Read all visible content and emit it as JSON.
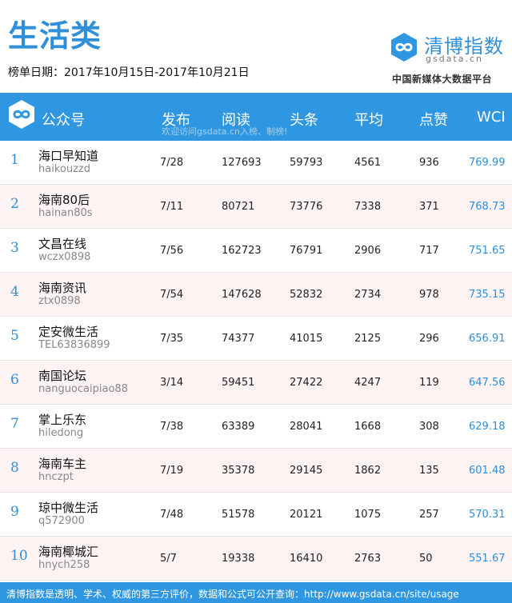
{
  "page": {
    "title": "生活类",
    "date_label": "榜单日期：2017年10月15日-2017年10月21日"
  },
  "brand": {
    "logo_icon": "infinity-logo-icon",
    "name_part1": "清博",
    "name_part2": "指数",
    "domain": "gsdata.cn",
    "tagline": "中国新媒体大数据平台"
  },
  "header": {
    "account": "公众号",
    "publish": "发布",
    "reads": "阅读",
    "headline": "头条",
    "average": "平均",
    "likes": "点赞",
    "wci": "WCI",
    "watermark": "欢迎访问gsdata.cn入榜、制榜!"
  },
  "rows": [
    {
      "rank": "1",
      "name": "海口早知道",
      "account": "haikouzzd",
      "publish": "7/28",
      "reads": "127693",
      "headline": "59793",
      "average": "4561",
      "likes": "936",
      "wci": "769.99"
    },
    {
      "rank": "2",
      "name": "海南80后",
      "account": "hainan80s",
      "publish": "7/11",
      "reads": "80721",
      "headline": "73776",
      "average": "7338",
      "likes": "371",
      "wci": "768.73"
    },
    {
      "rank": "3",
      "name": "文昌在线",
      "account": "wczx0898",
      "publish": "7/56",
      "reads": "162723",
      "headline": "76791",
      "average": "2906",
      "likes": "717",
      "wci": "751.65"
    },
    {
      "rank": "4",
      "name": "海南资讯",
      "account": "ztx0898",
      "publish": "7/54",
      "reads": "147628",
      "headline": "52832",
      "average": "2734",
      "likes": "978",
      "wci": "735.15"
    },
    {
      "rank": "5",
      "name": "定安微生活",
      "account": "TEL63836899",
      "publish": "7/35",
      "reads": "74377",
      "headline": "41015",
      "average": "2125",
      "likes": "296",
      "wci": "656.91"
    },
    {
      "rank": "6",
      "name": "南国论坛",
      "account": "nanguocaipiao88",
      "publish": "3/14",
      "reads": "59451",
      "headline": "27422",
      "average": "4247",
      "likes": "119",
      "wci": "647.56"
    },
    {
      "rank": "7",
      "name": "掌上乐东",
      "account": "hiledong",
      "publish": "7/38",
      "reads": "63389",
      "headline": "28041",
      "average": "1668",
      "likes": "308",
      "wci": "629.18"
    },
    {
      "rank": "8",
      "name": "海南车主",
      "account": "hnczpt",
      "publish": "7/19",
      "reads": "35378",
      "headline": "29145",
      "average": "1862",
      "likes": "135",
      "wci": "601.48"
    },
    {
      "rank": "9",
      "name": "琼中微生活",
      "account": "q572900",
      "publish": "7/48",
      "reads": "51578",
      "headline": "20121",
      "average": "1075",
      "likes": "257",
      "wci": "570.31"
    },
    {
      "rank": "10",
      "name": "海南椰城汇",
      "account": "hnych258",
      "publish": "5/7",
      "reads": "19338",
      "headline": "16410",
      "average": "2763",
      "likes": "50",
      "wci": "551.67"
    }
  ],
  "footer": {
    "text": "清博指数是透明、学术、权威的第三方评价，数据和公式可公开查询：http://www.gsdata.cn/site/usage"
  },
  "colors": {
    "accent": "#2f97e1",
    "title": "#2f8fd8",
    "alt_row": "#fdf3f3"
  }
}
